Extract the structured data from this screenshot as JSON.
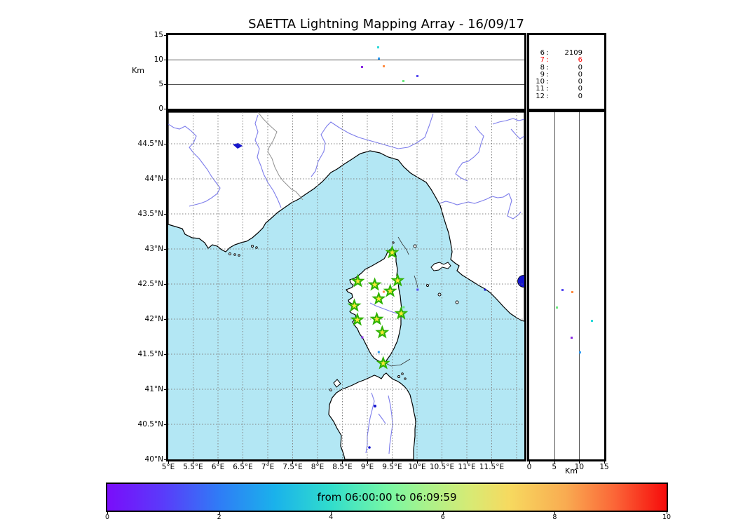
{
  "title": "SAETTA Lightning Mapping Array - 16/09/17",
  "axes": {
    "km_label_left": "Km",
    "km_label_bottom": "Km",
    "alt_ticks": {
      "labels": [
        "0",
        "5",
        "10",
        "15"
      ],
      "values": [
        0,
        5,
        10,
        15
      ]
    },
    "lat_ticks": {
      "labels": [
        "44.5°N",
        "44°N",
        "43.5°N",
        "43°N",
        "42.5°N",
        "42°N",
        "41.5°N",
        "41°N",
        "40.5°N",
        "40°N"
      ],
      "values": [
        44.5,
        44,
        43.5,
        43,
        42.5,
        42,
        41.5,
        41,
        40.5,
        40
      ]
    },
    "lon_ticks": {
      "labels": [
        "5°E",
        "5.5°E",
        "6°E",
        "6.5°E",
        "7°E",
        "7.5°E",
        "8°E",
        "8.5°E",
        "9°E",
        "9.5°E",
        "10°E",
        "10.5°E",
        "11°E",
        "11.5°E"
      ],
      "values": [
        5,
        5.5,
        6,
        6.5,
        7,
        7.5,
        8,
        8.5,
        9,
        9.5,
        10,
        10.5,
        11,
        11.5
      ]
    }
  },
  "stats_panel": {
    "rows": [
      {
        "label": "6",
        "value": "2109",
        "highlight": false
      },
      {
        "label": "7",
        "value": "6",
        "highlight": true
      },
      {
        "label": "8",
        "value": "0",
        "highlight": false
      },
      {
        "label": "9",
        "value": "0",
        "highlight": false
      },
      {
        "label": "10",
        "value": "0",
        "highlight": false
      },
      {
        "label": "11",
        "value": "0",
        "highlight": false
      },
      {
        "label": "12",
        "value": "0",
        "highlight": false
      }
    ],
    "highlight_color": "#ff0000",
    "text_color": "#000000"
  },
  "colorbar": {
    "label": "from 06:00:00 to 06:09:59",
    "ticks": {
      "labels": [
        "0",
        "2",
        "4",
        "6",
        "8",
        "10"
      ],
      "values": [
        0,
        2,
        4,
        6,
        8,
        10
      ]
    },
    "gradient_stops": [
      "#7a0dfa 0%",
      "#5a3bfa 10%",
      "#2f7cf6 20%",
      "#1ab2eb 30%",
      "#31ddcc 40%",
      "#76f7a5 50%",
      "#a9f28b 57%",
      "#d8ea74 65%",
      "#f7d95f 72%",
      "#f9ab51 82%",
      "#fb6336 91%",
      "#f60b0b 100%"
    ]
  },
  "map_colors": {
    "sea": "#b3e7f4",
    "land": "#ffffff",
    "coastline": "#000000",
    "river": "#7d7deb",
    "border": "#909090",
    "lake": "#1515cd",
    "grid": "#808080",
    "station_fill": "#f8e838",
    "station_edge": "#2db200"
  },
  "chart_data": {
    "type": "scatter",
    "title": "SAETTA Lightning Mapping Array - 16/09/17",
    "time_window": "from 06:00:00 to 06:09:59",
    "colorbar_range": [
      0,
      10
    ],
    "panels": {
      "top": {
        "x": "longitude_deg_E",
        "x_range": [
          5,
          12.155
        ],
        "y": "altitude_km",
        "y_range": [
          0,
          15
        ],
        "gridlines_alt": [
          5,
          10
        ]
      },
      "map": {
        "x_range": [
          5,
          12.155
        ],
        "y_range": [
          40,
          44.95
        ],
        "lon_gridlines": [
          5.5,
          6,
          6.5,
          7,
          7.5,
          8,
          8.5,
          9,
          9.5,
          10,
          10.5,
          11,
          11.5,
          12
        ],
        "lat_gridlines": [
          44.5,
          44,
          43.5,
          43,
          42.5,
          42,
          41.5,
          41,
          40.5
        ]
      },
      "right": {
        "x": "altitude_km",
        "x_range": [
          0,
          15
        ],
        "y": "latitude_deg_N",
        "y_range": [
          40,
          44.95
        ],
        "gridlines_alt": [
          5,
          10
        ]
      }
    },
    "events": [
      {
        "lon": 9.22,
        "lat": 41.98,
        "alt_km": 12.5,
        "color": "#2bd9d9"
      },
      {
        "lon": 9.23,
        "lat": 41.53,
        "alt_km": 10.2,
        "color": "#2e9bf2"
      },
      {
        "lon": 8.9,
        "lat": 41.74,
        "alt_km": 8.5,
        "color": "#8a2be2"
      },
      {
        "lon": 9.33,
        "lat": 42.39,
        "alt_km": 8.6,
        "color": "#ff8c42"
      },
      {
        "lon": 10.01,
        "lat": 42.42,
        "alt_km": 6.6,
        "color": "#5246f0"
      },
      {
        "lon": 9.73,
        "lat": 42.17,
        "alt_km": 5.6,
        "color": "#6ae87c"
      }
    ],
    "stations_lon_lat": [
      [
        9.5,
        42.95
      ],
      [
        8.81,
        42.54
      ],
      [
        9.15,
        42.49
      ],
      [
        9.61,
        42.55
      ],
      [
        9.46,
        42.4
      ],
      [
        9.23,
        42.29
      ],
      [
        8.74,
        42.19
      ],
      [
        9.68,
        42.08
      ],
      [
        8.8,
        41.99
      ],
      [
        9.19,
        42.0
      ],
      [
        9.3,
        41.81
      ],
      [
        9.32,
        41.37
      ]
    ],
    "source_counts": {
      "6": 2109,
      "7": 6,
      "8": 0,
      "9": 0,
      "10": 0,
      "11": 0,
      "12": 0
    }
  }
}
